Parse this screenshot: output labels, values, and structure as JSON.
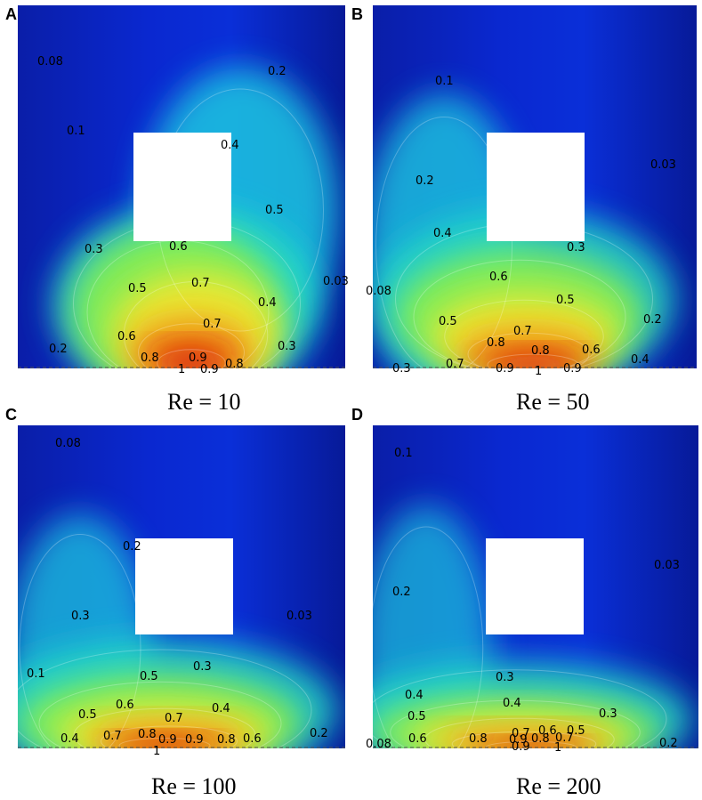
{
  "chart_data": [
    {
      "type": "heatmap",
      "panel": "A",
      "caption": "Re = 10",
      "contour_labels": [
        {
          "text": "0.08"
        },
        {
          "text": "0.2"
        },
        {
          "text": "0.1"
        },
        {
          "text": "0.4"
        },
        {
          "text": "0.5"
        },
        {
          "text": "0.3"
        },
        {
          "text": "0.6"
        },
        {
          "text": "0.03"
        },
        {
          "text": "0.5"
        },
        {
          "text": "0.7"
        },
        {
          "text": "0.4"
        },
        {
          "text": "0.7"
        },
        {
          "text": "0.6"
        },
        {
          "text": "0.3"
        },
        {
          "text": "0.2"
        },
        {
          "text": "0.8"
        },
        {
          "text": "0.9"
        },
        {
          "text": "0.8"
        },
        {
          "text": "1"
        },
        {
          "text": "0.9"
        }
      ]
    },
    {
      "type": "heatmap",
      "panel": "B",
      "caption": "Re = 50",
      "contour_labels": [
        {
          "text": "0.1"
        },
        {
          "text": "0.03"
        },
        {
          "text": "0.2"
        },
        {
          "text": "0.4"
        },
        {
          "text": "0.3"
        },
        {
          "text": "0.08"
        },
        {
          "text": "0.6"
        },
        {
          "text": "0.5"
        },
        {
          "text": "0.5"
        },
        {
          "text": "0.2"
        },
        {
          "text": "0.7"
        },
        {
          "text": "0.8"
        },
        {
          "text": "0.8"
        },
        {
          "text": "0.6"
        },
        {
          "text": "0.4"
        },
        {
          "text": "0.3"
        },
        {
          "text": "0.7"
        },
        {
          "text": "0.9"
        },
        {
          "text": "1"
        },
        {
          "text": "0.9"
        }
      ]
    },
    {
      "type": "heatmap",
      "panel": "C",
      "caption": "Re = 100",
      "contour_labels": [
        {
          "text": "0.08"
        },
        {
          "text": "0.2"
        },
        {
          "text": "0.3"
        },
        {
          "text": "0.03"
        },
        {
          "text": "0.1"
        },
        {
          "text": "0.5"
        },
        {
          "text": "0.3"
        },
        {
          "text": "0.6"
        },
        {
          "text": "0.4"
        },
        {
          "text": "0.5"
        },
        {
          "text": "0.7"
        },
        {
          "text": "0.2"
        },
        {
          "text": "0.8"
        },
        {
          "text": "0.4"
        },
        {
          "text": "0.7"
        },
        {
          "text": "0.9"
        },
        {
          "text": "0.9"
        },
        {
          "text": "0.8"
        },
        {
          "text": "0.6"
        },
        {
          "text": "1"
        }
      ]
    },
    {
      "type": "heatmap",
      "panel": "D",
      "caption": "Re = 200",
      "contour_labels": [
        {
          "text": "0.1"
        },
        {
          "text": "0.03"
        },
        {
          "text": "0.2"
        },
        {
          "text": "0.3"
        },
        {
          "text": "0.4"
        },
        {
          "text": "0.4"
        },
        {
          "text": "0.5"
        },
        {
          "text": "0.3"
        },
        {
          "text": "0.7"
        },
        {
          "text": "0.6"
        },
        {
          "text": "0.5"
        },
        {
          "text": "0.6"
        },
        {
          "text": "0.8"
        },
        {
          "text": "0.9"
        },
        {
          "text": "0.8"
        },
        {
          "text": "0.7"
        },
        {
          "text": "0.08"
        },
        {
          "text": "0.2"
        },
        {
          "text": "0.9"
        },
        {
          "text": "1"
        }
      ]
    }
  ]
}
